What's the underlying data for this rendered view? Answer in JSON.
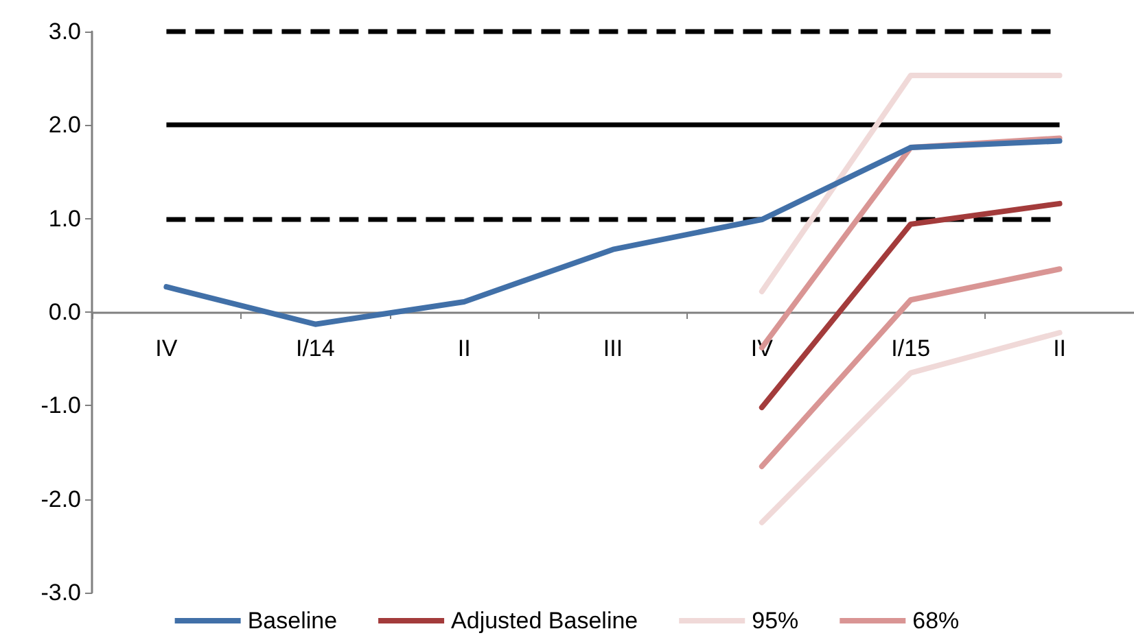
{
  "chart_data": {
    "type": "line",
    "categories": [
      "IV",
      "I/14",
      "II",
      "III",
      "IV",
      "I/15",
      "II"
    ],
    "series": [
      {
        "name": "Baseline",
        "color": "#4170a8",
        "values": [
          0.27,
          -0.13,
          0.11,
          0.67,
          0.99,
          1.76,
          1.83
        ]
      },
      {
        "name": "Adjusted Baseline",
        "color": "#a33b3b",
        "values": [
          null,
          null,
          null,
          null,
          -1.02,
          0.94,
          1.16
        ]
      },
      {
        "name": "95%",
        "color": "#f0d9d8",
        "values": [
          null,
          null,
          null,
          null,
          0.22,
          2.53,
          2.53
        ]
      },
      {
        "color": "#f0d9d8",
        "values": [
          null,
          null,
          null,
          null,
          -2.25,
          -0.65,
          -0.22
        ]
      },
      {
        "name": "68%",
        "color": "#d99594",
        "values": [
          null,
          null,
          null,
          null,
          -0.38,
          1.76,
          1.86
        ]
      },
      {
        "color": "#d99594",
        "values": [
          null,
          null,
          null,
          null,
          -1.65,
          0.13,
          0.46
        ]
      }
    ],
    "ylim": [
      -3,
      3
    ],
    "yticks": [
      {
        "value": -3,
        "label": "-3.0"
      },
      {
        "value": -2,
        "label": "-2.0"
      },
      {
        "value": -1,
        "label": "-1.0"
      },
      {
        "value": 0,
        "label": "0.0"
      },
      {
        "value": 1,
        "label": "1.0"
      },
      {
        "value": 2,
        "label": "2.0"
      },
      {
        "value": 3,
        "label": "3.0"
      }
    ],
    "ref_lines": [
      {
        "axis": "y",
        "value": 3,
        "color": "#000000",
        "line_style": "dashed"
      },
      {
        "axis": "y",
        "value": 2,
        "color": "#000000",
        "line_style": "solid"
      },
      {
        "axis": "y",
        "value": 1,
        "color": "#000000",
        "line_style": "dashed"
      }
    ],
    "grid": false,
    "legend": "bottom",
    "marker": "none",
    "line_style": "solid"
  }
}
